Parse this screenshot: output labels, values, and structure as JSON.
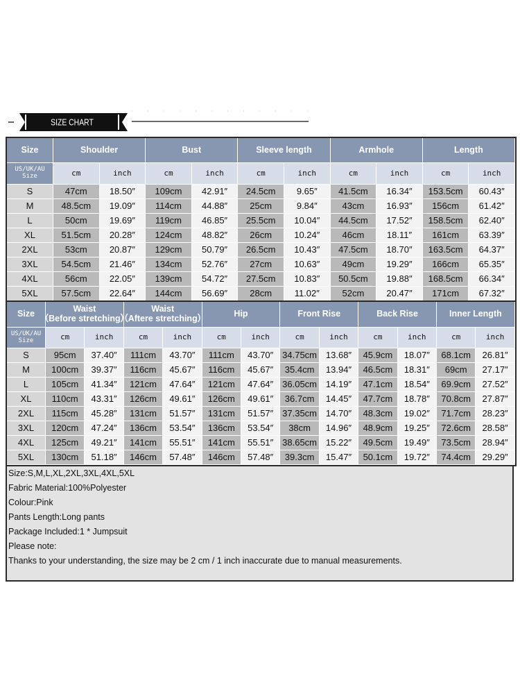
{
  "title": "SIZE CHART",
  "table1": {
    "headers": [
      [
        "Size"
      ],
      [
        "Shoulder"
      ],
      [
        "Bust"
      ],
      [
        "Sleeve length"
      ],
      [
        "Armhole"
      ],
      [
        "Length"
      ]
    ],
    "size_label": [
      "US/UK/AU",
      "Size"
    ],
    "units": [
      "cm",
      "inch"
    ],
    "rows": [
      [
        "S",
        "47cm",
        "18.50″",
        "109cm",
        "42.91″",
        "24.5cm",
        "9.65″",
        "41.5cm",
        "16.34″",
        "153.5cm",
        "60.43″"
      ],
      [
        "M",
        "48.5cm",
        "19.09″",
        "114cm",
        "44.88″",
        "25cm",
        "9.84″",
        "43cm",
        "16.93″",
        "156cm",
        "61.42″"
      ],
      [
        "L",
        "50cm",
        "19.69″",
        "119cm",
        "46.85″",
        "25.5cm",
        "10.04″",
        "44.5cm",
        "17.52″",
        "158.5cm",
        "62.40″"
      ],
      [
        "XL",
        "51.5cm",
        "20.28″",
        "124cm",
        "48.82″",
        "26cm",
        "10.24″",
        "46cm",
        "18.11″",
        "161cm",
        "63.39″"
      ],
      [
        "2XL",
        "53cm",
        "20.87″",
        "129cm",
        "50.79″",
        "26.5cm",
        "10.43″",
        "47.5cm",
        "18.70″",
        "163.5cm",
        "64.37″"
      ],
      [
        "3XL",
        "54.5cm",
        "21.46″",
        "134cm",
        "52.76″",
        "27cm",
        "10.63″",
        "49cm",
        "19.29″",
        "166cm",
        "65.35″"
      ],
      [
        "4XL",
        "56cm",
        "22.05″",
        "139cm",
        "54.72″",
        "27.5cm",
        "10.83″",
        "50.5cm",
        "19.88″",
        "168.5cm",
        "66.34″"
      ],
      [
        "5XL",
        "57.5cm",
        "22.64″",
        "144cm",
        "56.69″",
        "28cm",
        "11.02″",
        "52cm",
        "20.47″",
        "171cm",
        "67.32″"
      ]
    ]
  },
  "table2": {
    "headers": [
      [
        "Size"
      ],
      [
        "Waist",
        "（Before stretching）"
      ],
      [
        "Waist",
        "（Aftere stretching）"
      ],
      [
        "Hip"
      ],
      [
        "Front Rise"
      ],
      [
        "Back Rise"
      ],
      [
        "Inner Length"
      ]
    ],
    "size_label": [
      "US/UK/AU",
      "Size"
    ],
    "units": [
      "cm",
      "inch"
    ],
    "rows": [
      [
        "S",
        "95cm",
        "37.40″",
        "111cm",
        "43.70″",
        "111cm",
        "43.70″",
        "34.75cm",
        "13.68″",
        "45.9cm",
        "18.07″",
        "68.1cm",
        "26.81″"
      ],
      [
        "M",
        "100cm",
        "39.37″",
        "116cm",
        "45.67″",
        "116cm",
        "45.67″",
        "35.4cm",
        "13.94″",
        "46.5cm",
        "18.31″",
        "69cm",
        "27.17″"
      ],
      [
        "L",
        "105cm",
        "41.34″",
        "121cm",
        "47.64″",
        "121cm",
        "47.64″",
        "36.05cm",
        "14.19″",
        "47.1cm",
        "18.54″",
        "69.9cm",
        "27.52″"
      ],
      [
        "XL",
        "110cm",
        "43.31″",
        "126cm",
        "49.61″",
        "126cm",
        "49.61″",
        "36.7cm",
        "14.45″",
        "47.7cm",
        "18.78″",
        "70.8cm",
        "27.87″"
      ],
      [
        "2XL",
        "115cm",
        "45.28″",
        "131cm",
        "51.57″",
        "131cm",
        "51.57″",
        "37.35cm",
        "14.70″",
        "48.3cm",
        "19.02″",
        "71.7cm",
        "28.23″"
      ],
      [
        "3XL",
        "120cm",
        "47.24″",
        "136cm",
        "53.54″",
        "136cm",
        "53.54″",
        "38cm",
        "14.96″",
        "48.9cm",
        "19.25″",
        "72.6cm",
        "28.58″"
      ],
      [
        "4XL",
        "125cm",
        "49.21″",
        "141cm",
        "55.51″",
        "141cm",
        "55.51″",
        "38.65cm",
        "15.22″",
        "49.5cm",
        "19.49″",
        "73.5cm",
        "28.94″"
      ],
      [
        "5XL",
        "130cm",
        "51.18″",
        "146cm",
        "57.48″",
        "146cm",
        "57.48″",
        "39.3cm",
        "15.47″",
        "50.1cm",
        "19.72″",
        "74.4cm",
        "29.29″"
      ]
    ]
  },
  "notes": [
    "Size:S,M,L,XL,2XL,3XL,4XL,5XL",
    "Fabric Material:100%Polyester",
    "Colour:Pink",
    "Pants Length:Long pants",
    "Package Included:1 * Jumpsuit",
    "Please note:",
    "Thanks to your understanding, the size may be 2 cm / 1 inch inaccurate due to manual measurements."
  ]
}
